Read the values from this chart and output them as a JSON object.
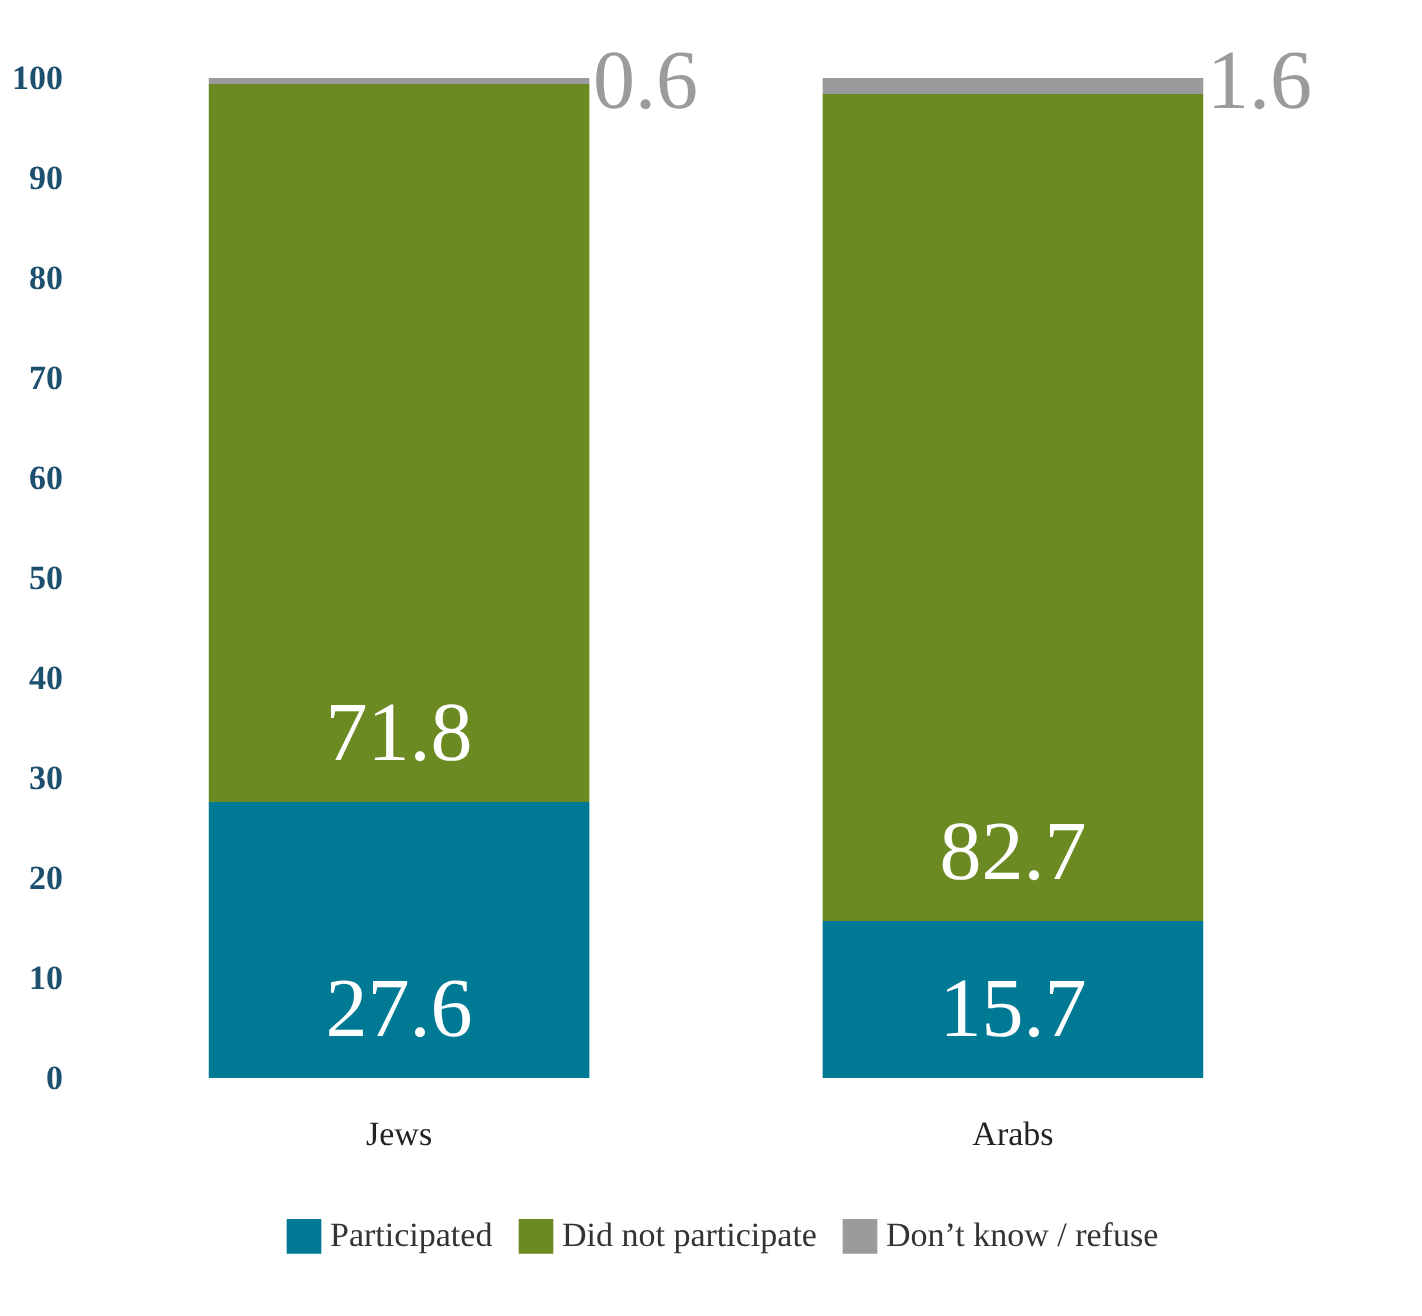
{
  "chart_data": {
    "type": "bar",
    "stacked": true,
    "categories": [
      "Jews",
      "Arabs"
    ],
    "series": [
      {
        "name": "Participated",
        "color": "#007a94",
        "values": [
          27.6,
          15.7
        ]
      },
      {
        "name": "Did not participate",
        "color": "#6b8a22",
        "values": [
          71.8,
          82.7
        ]
      },
      {
        "name": "Don’t know / refuse",
        "color": "#9b9b9d",
        "values": [
          0.6,
          1.6
        ]
      }
    ],
    "ylim": [
      0,
      100
    ],
    "yticks": [
      0,
      10,
      20,
      30,
      40,
      50,
      60,
      70,
      80,
      90,
      100
    ],
    "grid": false,
    "legend": "bottom right",
    "data_labels": true
  }
}
